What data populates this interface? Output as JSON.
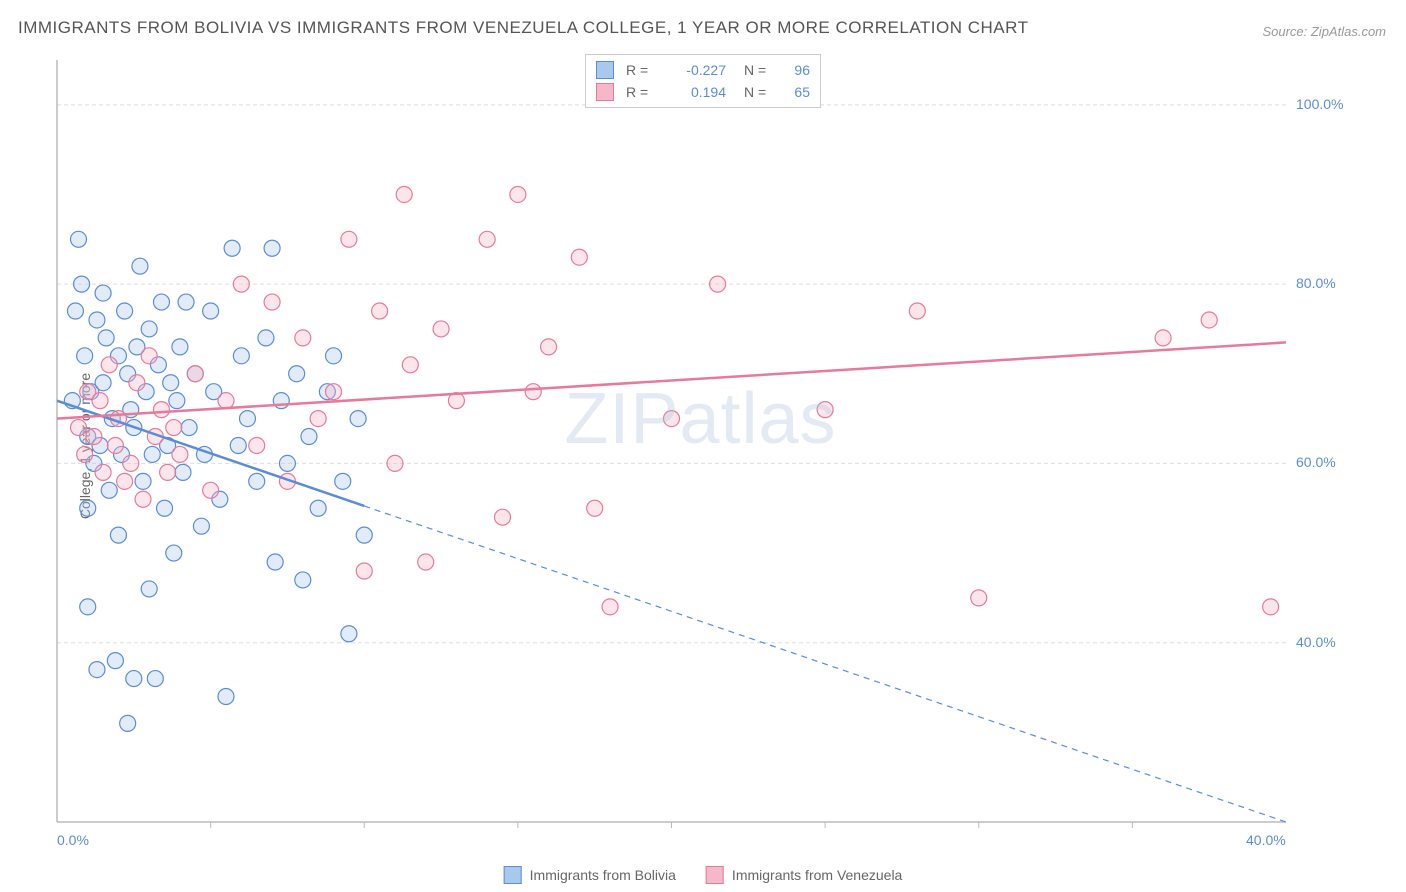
{
  "title": "IMMIGRANTS FROM BOLIVIA VS IMMIGRANTS FROM VENEZUELA COLLEGE, 1 YEAR OR MORE CORRELATION CHART",
  "source": "Source: ZipAtlas.com",
  "watermark_a": "ZIP",
  "watermark_b": "atlas",
  "ylabel": "College, 1 year or more",
  "chart": {
    "type": "scatter",
    "background_color": "#ffffff",
    "grid_color": "#dddddd",
    "grid_dash": "4,3",
    "axis_color": "#bbbbbb",
    "xlim": [
      0.0,
      40.0
    ],
    "ylim": [
      20.0,
      105.0
    ],
    "xtick_labels": [
      "0.0%",
      "40.0%"
    ],
    "xtick_positions": [
      0.0,
      40.0
    ],
    "xtick_minor": [
      5,
      10,
      15,
      20,
      25,
      30,
      35
    ],
    "ytick_labels": [
      "40.0%",
      "60.0%",
      "80.0%",
      "100.0%"
    ],
    "ytick_positions": [
      40.0,
      60.0,
      80.0,
      100.0
    ],
    "marker_radius": 8,
    "marker_fill_opacity": 0.35,
    "marker_stroke_width": 1.2,
    "trend_line_width": 2.5,
    "series": [
      {
        "name": "Immigrants from Bolivia",
        "color_fill": "#a8c8ec",
        "color_stroke": "#5b8dd6",
        "r": -0.227,
        "n": 96,
        "trend": {
          "x1": 0.0,
          "y1": 67.0,
          "x2": 40.0,
          "y2": 20.0,
          "solid_until_x": 10.0
        },
        "points": [
          [
            0.5,
            67
          ],
          [
            0.6,
            77
          ],
          [
            0.7,
            85
          ],
          [
            0.8,
            80
          ],
          [
            0.9,
            72
          ],
          [
            1.0,
            63
          ],
          [
            1.0,
            44
          ],
          [
            1.0,
            55
          ],
          [
            1.1,
            68
          ],
          [
            1.2,
            60
          ],
          [
            1.3,
            76
          ],
          [
            1.3,
            37
          ],
          [
            1.4,
            62
          ],
          [
            1.5,
            79
          ],
          [
            1.5,
            69
          ],
          [
            1.6,
            74
          ],
          [
            1.7,
            57
          ],
          [
            1.8,
            65
          ],
          [
            1.9,
            38
          ],
          [
            2.0,
            72
          ],
          [
            2.0,
            52
          ],
          [
            2.1,
            61
          ],
          [
            2.2,
            77
          ],
          [
            2.3,
            70
          ],
          [
            2.3,
            31
          ],
          [
            2.4,
            66
          ],
          [
            2.5,
            36
          ],
          [
            2.5,
            64
          ],
          [
            2.6,
            73
          ],
          [
            2.7,
            82
          ],
          [
            2.8,
            58
          ],
          [
            2.9,
            68
          ],
          [
            3.0,
            46
          ],
          [
            3.0,
            75
          ],
          [
            3.1,
            61
          ],
          [
            3.2,
            36
          ],
          [
            3.3,
            71
          ],
          [
            3.4,
            78
          ],
          [
            3.5,
            55
          ],
          [
            3.6,
            62
          ],
          [
            3.7,
            69
          ],
          [
            3.8,
            50
          ],
          [
            3.9,
            67
          ],
          [
            4.0,
            73
          ],
          [
            4.1,
            59
          ],
          [
            4.2,
            78
          ],
          [
            4.3,
            64
          ],
          [
            4.5,
            70
          ],
          [
            4.7,
            53
          ],
          [
            4.8,
            61
          ],
          [
            5.0,
            77
          ],
          [
            5.1,
            68
          ],
          [
            5.3,
            56
          ],
          [
            5.5,
            34
          ],
          [
            5.7,
            84
          ],
          [
            5.9,
            62
          ],
          [
            6.0,
            72
          ],
          [
            6.2,
            65
          ],
          [
            6.5,
            58
          ],
          [
            6.8,
            74
          ],
          [
            7.0,
            84
          ],
          [
            7.1,
            49
          ],
          [
            7.3,
            67
          ],
          [
            7.5,
            60
          ],
          [
            7.8,
            70
          ],
          [
            8.0,
            47
          ],
          [
            8.2,
            63
          ],
          [
            8.5,
            55
          ],
          [
            8.8,
            68
          ],
          [
            9.0,
            72
          ],
          [
            9.3,
            58
          ],
          [
            9.5,
            41
          ],
          [
            9.8,
            65
          ],
          [
            10.0,
            52
          ]
        ]
      },
      {
        "name": "Immigrants from Venezuela",
        "color_fill": "#f5b8c8",
        "color_stroke": "#e77a9a",
        "r": 0.194,
        "n": 65,
        "trend": {
          "x1": 0.0,
          "y1": 65.0,
          "x2": 40.0,
          "y2": 73.5,
          "solid_until_x": 40.0
        },
        "points": [
          [
            0.7,
            64
          ],
          [
            0.9,
            61
          ],
          [
            1.0,
            68
          ],
          [
            1.2,
            63
          ],
          [
            1.4,
            67
          ],
          [
            1.5,
            59
          ],
          [
            1.7,
            71
          ],
          [
            1.9,
            62
          ],
          [
            2.0,
            65
          ],
          [
            2.2,
            58
          ],
          [
            2.4,
            60
          ],
          [
            2.6,
            69
          ],
          [
            2.8,
            56
          ],
          [
            3.0,
            72
          ],
          [
            3.2,
            63
          ],
          [
            3.4,
            66
          ],
          [
            3.6,
            59
          ],
          [
            3.8,
            64
          ],
          [
            4.0,
            61
          ],
          [
            4.5,
            70
          ],
          [
            5.0,
            57
          ],
          [
            5.5,
            67
          ],
          [
            6.0,
            80
          ],
          [
            6.5,
            62
          ],
          [
            7.0,
            78
          ],
          [
            7.5,
            58
          ],
          [
            8.0,
            74
          ],
          [
            8.5,
            65
          ],
          [
            9.0,
            68
          ],
          [
            9.5,
            85
          ],
          [
            10.0,
            48
          ],
          [
            10.5,
            77
          ],
          [
            11.0,
            60
          ],
          [
            11.3,
            90
          ],
          [
            11.5,
            71
          ],
          [
            12.0,
            49
          ],
          [
            12.5,
            75
          ],
          [
            13.0,
            67
          ],
          [
            14.0,
            85
          ],
          [
            14.5,
            54
          ],
          [
            15.0,
            90
          ],
          [
            15.5,
            68
          ],
          [
            16.0,
            73
          ],
          [
            17.0,
            83
          ],
          [
            17.5,
            55
          ],
          [
            18.0,
            44
          ],
          [
            20.0,
            65
          ],
          [
            21.5,
            80
          ],
          [
            25.0,
            66
          ],
          [
            28.0,
            77
          ],
          [
            30.0,
            45
          ],
          [
            36.0,
            74
          ],
          [
            37.5,
            76
          ],
          [
            39.5,
            44
          ]
        ]
      }
    ]
  },
  "legend_top_label_r": "R =",
  "legend_top_label_n": "N ="
}
